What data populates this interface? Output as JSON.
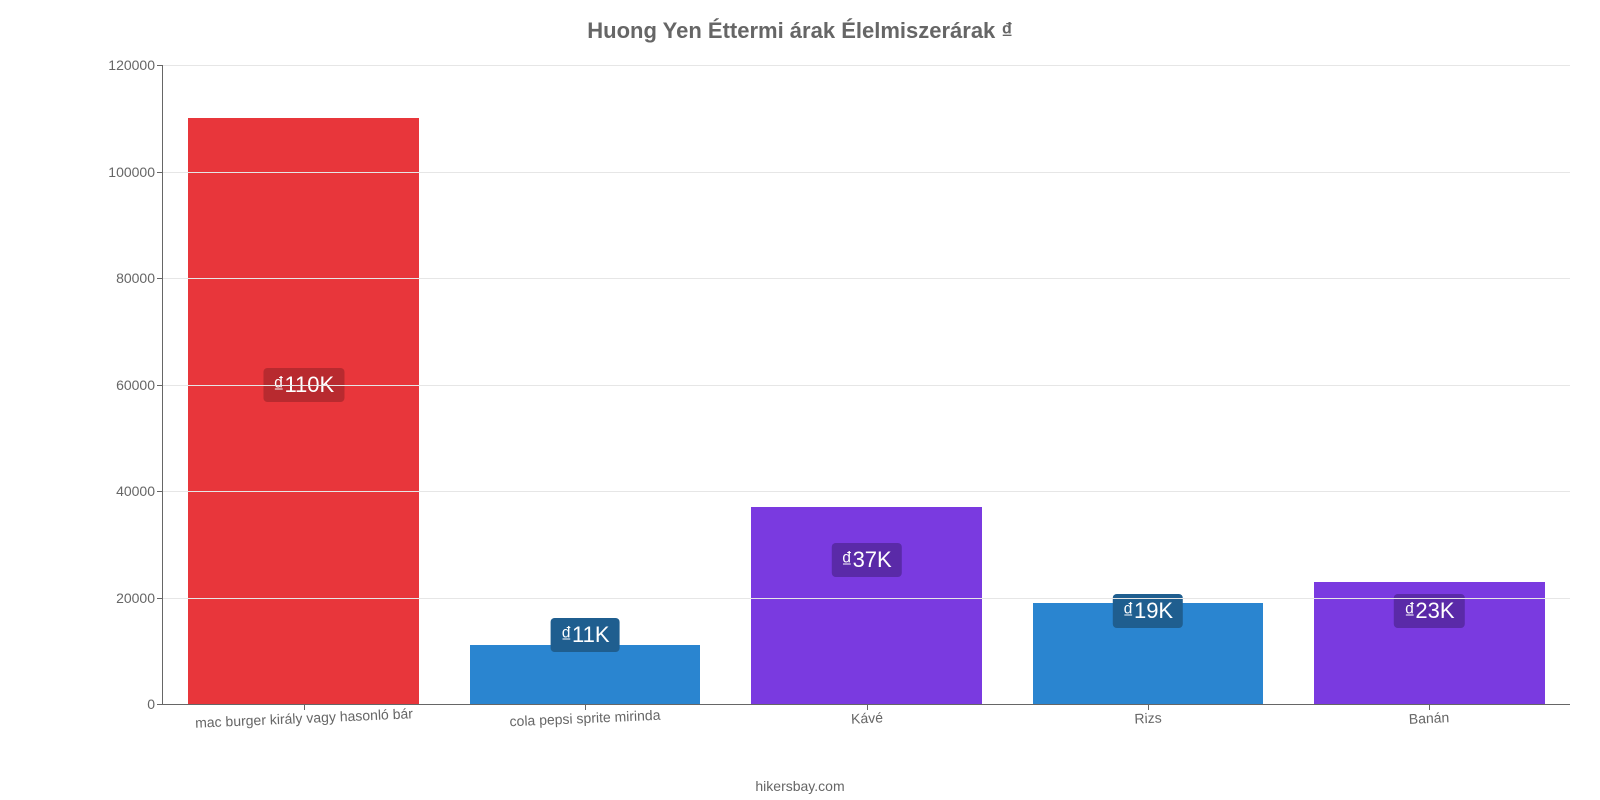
{
  "chart": {
    "type": "bar",
    "title": "Huong Yen Éttermi árak Élelmiszerárak ₫",
    "title_color": "#666666",
    "title_fontsize": 22,
    "attribution": "hikersbay.com",
    "background_color": "#ffffff",
    "grid_color": "#e6e6e6",
    "axis_color": "#666666",
    "tick_label_color": "#666666",
    "tick_fontsize": 14,
    "value_label_fontsize": 22,
    "xlabel_rotation_deg": -2.5,
    "ylim": [
      0,
      120000
    ],
    "ytick_step": 20000,
    "yticks": [
      0,
      20000,
      40000,
      60000,
      80000,
      100000,
      120000
    ],
    "bar_width_ratio": 0.82,
    "categories": [
      "mac burger király vagy hasonló bár",
      "cola pepsi sprite mirinda",
      "Kávé",
      "Rizs",
      "Banán"
    ],
    "values": [
      110000,
      11000,
      37000,
      19000,
      23000
    ],
    "value_labels": [
      "₫110K",
      "₫11K",
      "₫37K",
      "₫19K",
      "₫23K"
    ],
    "bar_colors": [
      "#e8363b",
      "#2a85d0",
      "#7a3ae0",
      "#2a85d0",
      "#7a3ae0"
    ],
    "badge_colors": [
      "#b82a2f",
      "#1f5e8f",
      "#5a2aa8",
      "#1f5e8f",
      "#5a2aa8"
    ],
    "badge_y_values": [
      60000,
      13000,
      27000,
      17500,
      17500
    ]
  }
}
